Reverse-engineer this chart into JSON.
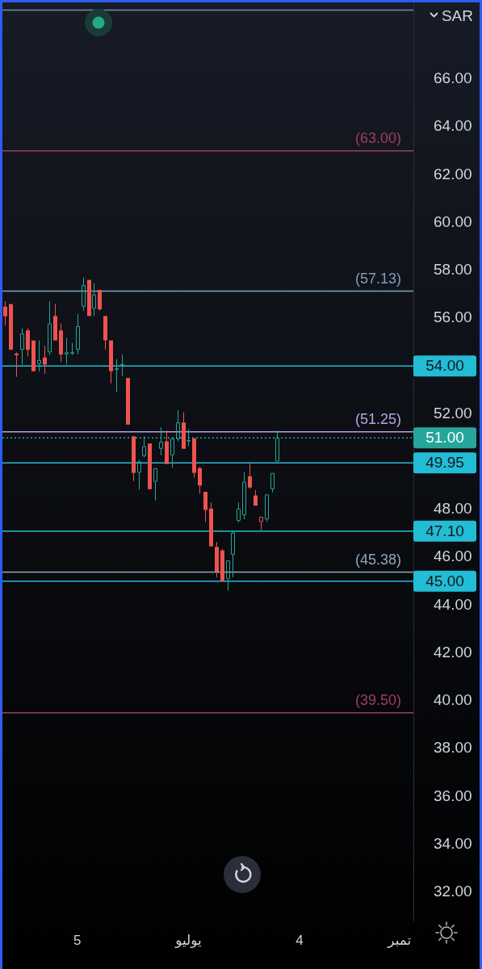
{
  "chart_data": {
    "type": "candlestick",
    "ylabel": "SAR",
    "categories": [
      null,
      null,
      null,
      null,
      null,
      null,
      null,
      null,
      null,
      null,
      null,
      null,
      null,
      "5",
      null,
      null,
      null,
      null,
      null,
      null,
      null,
      null,
      null,
      null,
      null,
      null,
      null,
      null,
      null,
      null,
      null,
      null,
      null,
      "يوليو",
      null,
      null,
      null,
      null,
      null,
      null,
      null,
      null,
      null,
      null,
      null,
      null,
      null,
      null,
      null,
      null,
      null,
      null,
      null,
      "4",
      null,
      null,
      null,
      null,
      null,
      null,
      null,
      null,
      null,
      null,
      null,
      null,
      null,
      null,
      null,
      null,
      null,
      "تمبر",
      null,
      null
    ],
    "ohlc": [
      [
        56.48,
        56.71,
        55.69,
        56.08
      ],
      [
        56.59,
        56.59,
        54.68,
        54.68
      ],
      [
        54.52,
        54.57,
        53.55,
        54.45
      ],
      [
        54.68,
        55.58,
        54.06,
        55.36
      ],
      [
        55.49,
        55.58,
        54.4,
        54.68
      ],
      [
        55.07,
        55.07,
        53.78,
        53.78
      ],
      [
        54.08,
        55.07,
        53.78,
        54.25
      ],
      [
        54.36,
        54.85,
        53.67,
        54.06
      ],
      [
        54.57,
        56.71,
        54.46,
        55.78
      ],
      [
        56.09,
        56.59,
        55.07,
        55.07
      ],
      [
        55.49,
        55.78,
        54.17,
        54.48
      ],
      [
        54.49,
        55.17,
        54.06,
        54.57
      ],
      [
        54.52,
        54.96,
        54.46,
        54.57
      ],
      [
        54.68,
        56.17,
        54.49,
        55.66
      ],
      [
        56.48,
        57.7,
        56.31,
        57.38
      ],
      [
        57.6,
        57.6,
        56.09,
        56.09
      ],
      [
        56.39,
        57.47,
        56.09,
        56.99
      ],
      [
        57.18,
        57.18,
        56.31,
        56.37
      ],
      [
        56.09,
        56.09,
        54.68,
        55.07
      ],
      [
        55.07,
        55.07,
        53.27,
        53.78
      ],
      [
        53.85,
        54.29,
        52.91,
        53.9
      ],
      [
        54.04,
        54.48,
        53.58,
        54.08
      ],
      [
        53.5,
        53.5,
        51.55,
        51.55
      ],
      [
        51.06,
        51.06,
        49.19,
        49.53
      ],
      [
        49.54,
        50.07,
        48.83,
        50.01
      ],
      [
        50.24,
        51.06,
        50.18,
        50.65
      ],
      [
        50.76,
        50.76,
        48.85,
        48.85
      ],
      [
        49.16,
        49.73,
        48.38,
        49.73
      ],
      [
        50.54,
        51.44,
        50.27,
        50.83
      ],
      [
        50.85,
        51.31,
        49.9,
        49.9
      ],
      [
        50.27,
        50.97,
        49.75,
        50.97
      ],
      [
        50.94,
        52.15,
        50.85,
        51.64
      ],
      [
        51.64,
        52.07,
        50.54,
        50.54
      ],
      [
        50.85,
        51.36,
        50.65,
        50.9
      ],
      [
        50.97,
        50.97,
        49.33,
        49.53
      ],
      [
        49.73,
        49.79,
        48.66,
        49
      ],
      [
        48.74,
        48.74,
        47.48,
        47.98
      ],
      [
        48.04,
        48.29,
        46.46,
        46.46
      ],
      [
        46.44,
        46.64,
        45.17,
        45.4
      ],
      [
        46.29,
        46.35,
        45,
        45
      ],
      [
        45.09,
        45.87,
        44.61,
        45.87
      ],
      [
        46.11,
        47.1,
        45.17,
        47.03
      ],
      [
        47.53,
        48.29,
        47.46,
        48.04
      ],
      [
        47.76,
        49.56,
        47.59,
        49.16
      ],
      [
        49.39,
        49.95,
        48.86,
        48.92
      ],
      [
        48.59,
        48.81,
        48.16,
        48.16
      ],
      [
        47.48,
        47.7,
        47.14,
        47.7
      ],
      [
        47.59,
        48.63,
        47.48,
        48.63
      ],
      [
        48.85,
        49.53,
        48.72,
        49.53
      ],
      [
        50.01,
        51.3,
        50.01,
        51
      ],
      null,
      null,
      null,
      null,
      null,
      null,
      null,
      null,
      null,
      null,
      null,
      null,
      null,
      null,
      null,
      null,
      null,
      null,
      null,
      null,
      null,
      null,
      null,
      null
    ],
    "colors": [
      "#ef5350",
      "#ef5350",
      "#ef5350",
      "#26a69a",
      "#ef5350",
      "#ef5350",
      "#26a69a",
      "#ef5350",
      "#26a69a",
      "#ef5350",
      "#ef5350",
      "#26a69a",
      "#26a69a",
      "#26a69a",
      "#26a69a",
      "#ef5350",
      "#26a69a",
      "#ef5350",
      "#ef5350",
      "#ef5350",
      "#26a69a",
      "#26a69a",
      "#ef5350",
      "#ef5350",
      "#26a69a",
      "#26a69a",
      "#ef5350",
      "#26a69a",
      "#26a69a",
      "#ef5350",
      "#26a69a",
      "#26a69a",
      "#ef5350",
      "#26a69a",
      "#ef5350",
      "#ef5350",
      "#ef5350",
      "#ef5350",
      "#ef5350",
      "#ef5350",
      "#26a69a",
      "#26a69a",
      "#26a69a",
      "#26a69a",
      "#ef5350",
      "#ef5350",
      "#ef5350",
      "#26a69a",
      "#26a69a",
      "#26a69a",
      null,
      null,
      null,
      null,
      null,
      null,
      null,
      null,
      null,
      null,
      null,
      null,
      null,
      null,
      null,
      null,
      null,
      null,
      null,
      null,
      null,
      null,
      null,
      null
    ],
    "ylim": [
      30.8,
      69.2
    ],
    "yticks": [
      {
        "value": 32,
        "label": "32.00"
      },
      {
        "value": 34,
        "label": "34.00"
      },
      {
        "value": 36,
        "label": "36.00"
      },
      {
        "value": 38,
        "label": "38.00"
      },
      {
        "value": 40,
        "label": "40.00"
      },
      {
        "value": 42,
        "label": "42.00"
      },
      {
        "value": 44,
        "label": "44.00"
      },
      {
        "value": 46,
        "label": "46.00"
      },
      {
        "value": 48,
        "label": "48.00"
      },
      {
        "value": 52,
        "label": "52.00"
      },
      {
        "value": 56,
        "label": "56.00"
      },
      {
        "value": 58,
        "label": "58.00"
      },
      {
        "value": 60,
        "label": "60.00"
      },
      {
        "value": 62,
        "label": "62.00"
      },
      {
        "value": 64,
        "label": "64.00"
      },
      {
        "value": 66,
        "label": "66.00"
      }
    ],
    "ref_lines": [
      {
        "axis": "y",
        "value": 68.88,
        "color": "#6f8fa8"
      },
      {
        "axis": "y",
        "value": 63,
        "color": "#9c3d66"
      },
      {
        "axis": "y",
        "value": 57.13,
        "color": "#7f9fb8"
      },
      {
        "axis": "y",
        "value": 54,
        "label": "54.00",
        "color": "#22bcd4"
      },
      {
        "axis": "y",
        "value": 51.25,
        "color": "#b9a3e3"
      },
      {
        "axis": "y",
        "value": 51,
        "label": "51.00",
        "color": "#26a69a",
        "line_style": "dotted"
      },
      {
        "axis": "y",
        "value": 49.95,
        "label": "49.95",
        "color": "#22bcd4"
      },
      {
        "axis": "y",
        "value": 47.1,
        "label": "47.10",
        "color": "#22bcd4"
      },
      {
        "axis": "y",
        "value": 45.38,
        "color": "#8fa8c0"
      },
      {
        "axis": "y",
        "value": 45,
        "label": "45.00",
        "color": "#22bcd4"
      },
      {
        "axis": "y",
        "value": 39.5,
        "color": "#9c3d66"
      }
    ],
    "annotations": [
      {
        "text": "(63.00)",
        "y": 63
      },
      {
        "text": "(57.13)",
        "y": 57.13
      },
      {
        "text": "(51.25)",
        "y": 51.25
      },
      {
        "text": "(45.38)",
        "y": 45.38
      },
      {
        "text": "(39.50)",
        "y": 39.5
      }
    ]
  }
}
